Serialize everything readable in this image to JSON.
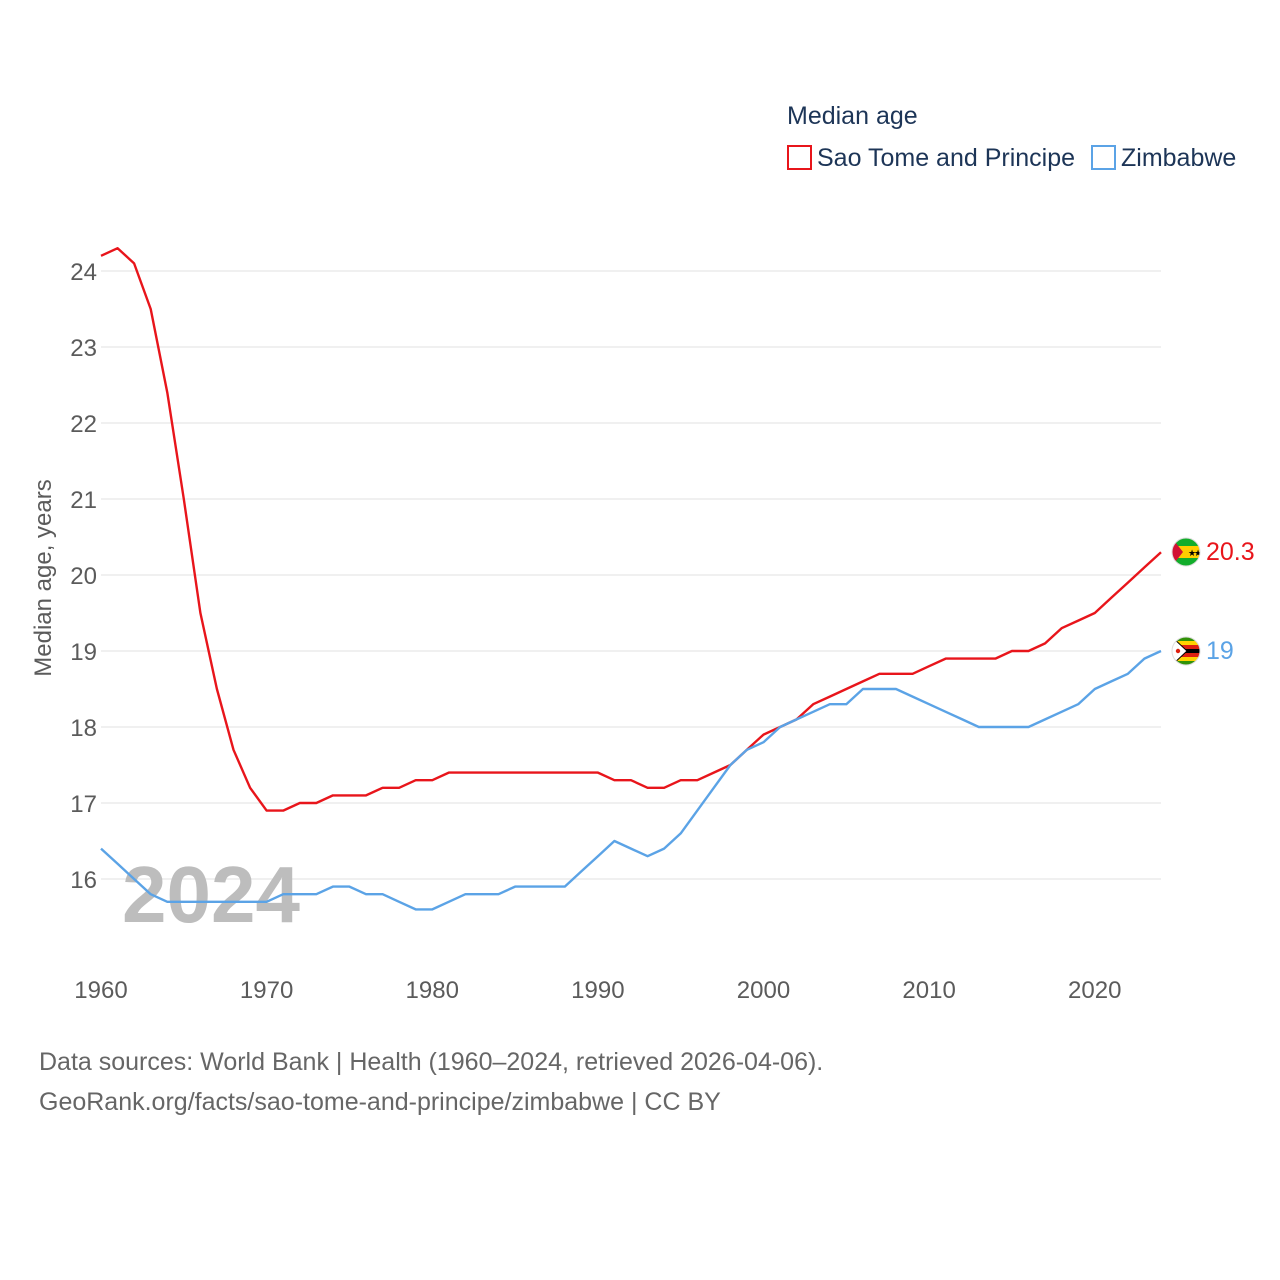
{
  "chart_data": {
    "type": "line",
    "legend_title": "Median age",
    "ylabel": "Median age, years",
    "xlabel": "",
    "ylim": [
      15,
      24.6
    ],
    "xlim": [
      1960,
      2024
    ],
    "y_ticks": [
      "16",
      "17",
      "18",
      "19",
      "20",
      "21",
      "22",
      "23",
      "24"
    ],
    "x_ticks": [
      "1960",
      "1970",
      "1980",
      "1990",
      "2000",
      "2010",
      "2020"
    ],
    "year_label": "2024",
    "grid": true,
    "legend_position": "top-right",
    "x": [
      1960,
      1961,
      1962,
      1963,
      1964,
      1965,
      1966,
      1967,
      1968,
      1969,
      1970,
      1971,
      1972,
      1973,
      1974,
      1975,
      1976,
      1977,
      1978,
      1979,
      1980,
      1981,
      1982,
      1983,
      1984,
      1985,
      1986,
      1987,
      1988,
      1989,
      1990,
      1991,
      1992,
      1993,
      1994,
      1995,
      1996,
      1997,
      1998,
      1999,
      2000,
      2001,
      2002,
      2003,
      2004,
      2005,
      2006,
      2007,
      2008,
      2009,
      2010,
      2011,
      2012,
      2013,
      2014,
      2015,
      2016,
      2017,
      2018,
      2019,
      2020,
      2021,
      2022,
      2023,
      2024
    ],
    "series": [
      {
        "name": "Sao Tome and Principe",
        "color": "#e8151b",
        "end_label": "20.3",
        "values": [
          24.2,
          24.3,
          24.1,
          23.5,
          22.4,
          21.0,
          19.5,
          18.5,
          17.7,
          17.2,
          16.9,
          16.9,
          17.0,
          17.0,
          17.1,
          17.1,
          17.1,
          17.2,
          17.2,
          17.3,
          17.3,
          17.4,
          17.4,
          17.4,
          17.4,
          17.4,
          17.4,
          17.4,
          17.4,
          17.4,
          17.4,
          17.3,
          17.3,
          17.2,
          17.2,
          17.3,
          17.3,
          17.4,
          17.5,
          17.7,
          17.9,
          18.0,
          18.1,
          18.3,
          18.4,
          18.5,
          18.6,
          18.7,
          18.7,
          18.7,
          18.8,
          18.9,
          18.9,
          18.9,
          18.9,
          19.0,
          19.0,
          19.1,
          19.3,
          19.4,
          19.5,
          19.7,
          19.9,
          20.1,
          20.3
        ]
      },
      {
        "name": "Zimbabwe",
        "color": "#5ba3e6",
        "end_label": "19",
        "values": [
          16.4,
          16.2,
          16.0,
          15.8,
          15.7,
          15.7,
          15.7,
          15.7,
          15.7,
          15.7,
          15.7,
          15.8,
          15.8,
          15.8,
          15.9,
          15.9,
          15.8,
          15.8,
          15.7,
          15.6,
          15.6,
          15.7,
          15.8,
          15.8,
          15.8,
          15.9,
          15.9,
          15.9,
          15.9,
          16.1,
          16.3,
          16.5,
          16.4,
          16.3,
          16.4,
          16.6,
          16.9,
          17.2,
          17.5,
          17.7,
          17.8,
          18.0,
          18.1,
          18.2,
          18.3,
          18.3,
          18.5,
          18.5,
          18.5,
          18.4,
          18.3,
          18.2,
          18.1,
          18.0,
          18.0,
          18.0,
          18.0,
          18.1,
          18.2,
          18.3,
          18.5,
          18.6,
          18.7,
          18.9,
          19.0
        ]
      }
    ]
  },
  "footer": {
    "line1": "Data sources: World Bank | Health (1960–2024, retrieved 2026-04-06).",
    "line2": "GeoRank.org/facts/sao-tome-and-principe/zimbabwe | CC BY"
  }
}
